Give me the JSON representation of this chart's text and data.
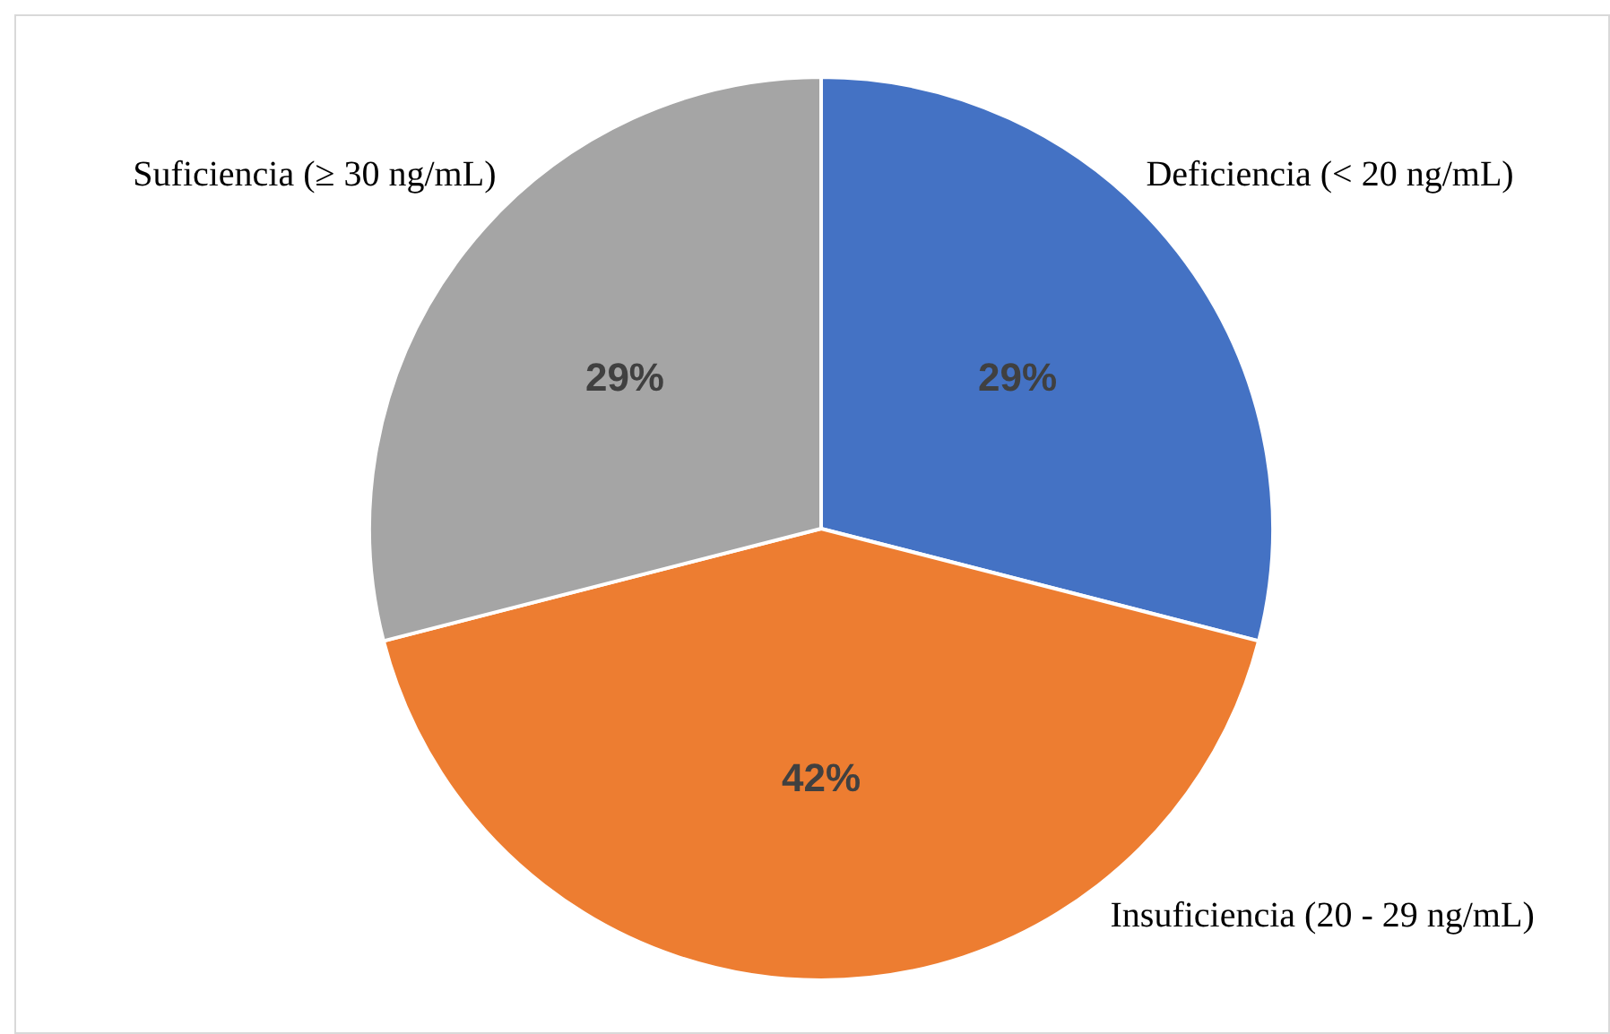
{
  "chart_data": {
    "type": "pie",
    "categories": [
      "Deficiencia (< 20 ng/mL)",
      "Insuficiencia (20 - 29 ng/mL)",
      "Suficiencia (≥ 30 ng/mL)"
    ],
    "values": [
      29,
      42,
      29
    ],
    "colors": [
      "#4472c4",
      "#ed7d31",
      "#a5a5a5"
    ],
    "value_labels": [
      "29%",
      "42%",
      "29%"
    ]
  }
}
